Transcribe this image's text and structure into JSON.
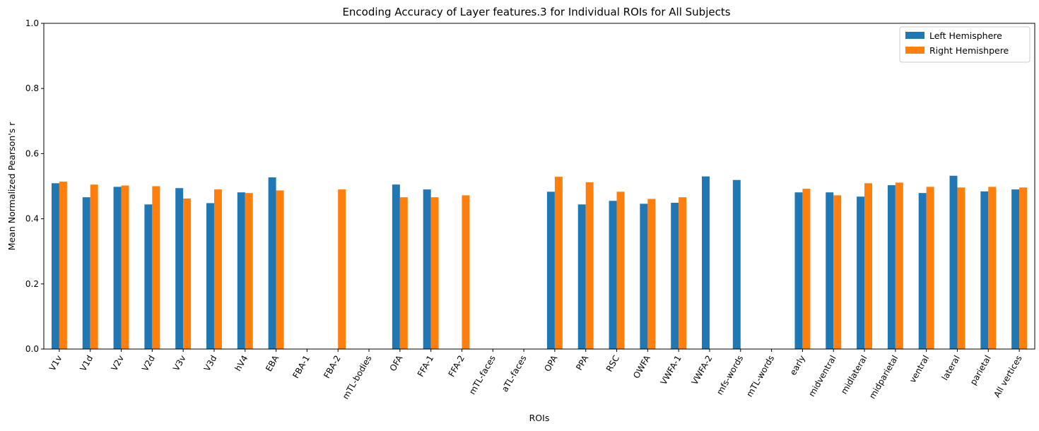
{
  "chart_data": {
    "type": "bar",
    "title": "Encoding Accuracy of Layer features.3 for Individual ROIs for All Subjects",
    "xlabel": "ROIs",
    "ylabel": "Mean Normalized Pearson's r",
    "ylim": [
      0,
      1.0
    ],
    "yticks": [
      "0.0",
      "0.2",
      "0.4",
      "0.6",
      "0.8",
      "1.0"
    ],
    "legend_position": "top-right",
    "grid": false,
    "categories": [
      "V1v",
      "V1d",
      "V2v",
      "V2d",
      "V3v",
      "V3d",
      "hV4",
      "EBA",
      "FBA-1",
      "FBA-2",
      "mTL-bodies",
      "OFA",
      "FFA-1",
      "FFA-2",
      "mTL-faces",
      "aTL-faces",
      "OPA",
      "PPA",
      "RSC",
      "OWFA",
      "VWFA-1",
      "VWFA-2",
      "mfs-words",
      "mTL-words",
      "early",
      "midventral",
      "midlateral",
      "midparietal",
      "ventral",
      "lateral",
      "parietal",
      "All vertices"
    ],
    "series": [
      {
        "name": "Left Hemisphere",
        "color": "#1f77b4",
        "values": [
          0.509,
          0.466,
          0.498,
          0.444,
          0.494,
          0.448,
          0.481,
          0.527,
          0,
          0,
          0,
          0.505,
          0.49,
          0,
          0,
          0,
          0.483,
          0.444,
          0.455,
          0.446,
          0.449,
          0.53,
          0.519,
          0,
          0.481,
          0.481,
          0.468,
          0.503,
          0.479,
          0.532,
          0.484,
          0.49
        ]
      },
      {
        "name": "Right Hemishpere",
        "color": "#ff7f0e",
        "values": [
          0.514,
          0.505,
          0.502,
          0.5,
          0.462,
          0.49,
          0.479,
          0.487,
          0,
          0.49,
          0,
          0.466,
          0.466,
          0.472,
          0,
          0,
          0.529,
          0.512,
          0.483,
          0.461,
          0.466,
          0,
          0,
          0,
          0.492,
          0.472,
          0.509,
          0.511,
          0.498,
          0.496,
          0.498,
          0.496
        ]
      }
    ]
  }
}
